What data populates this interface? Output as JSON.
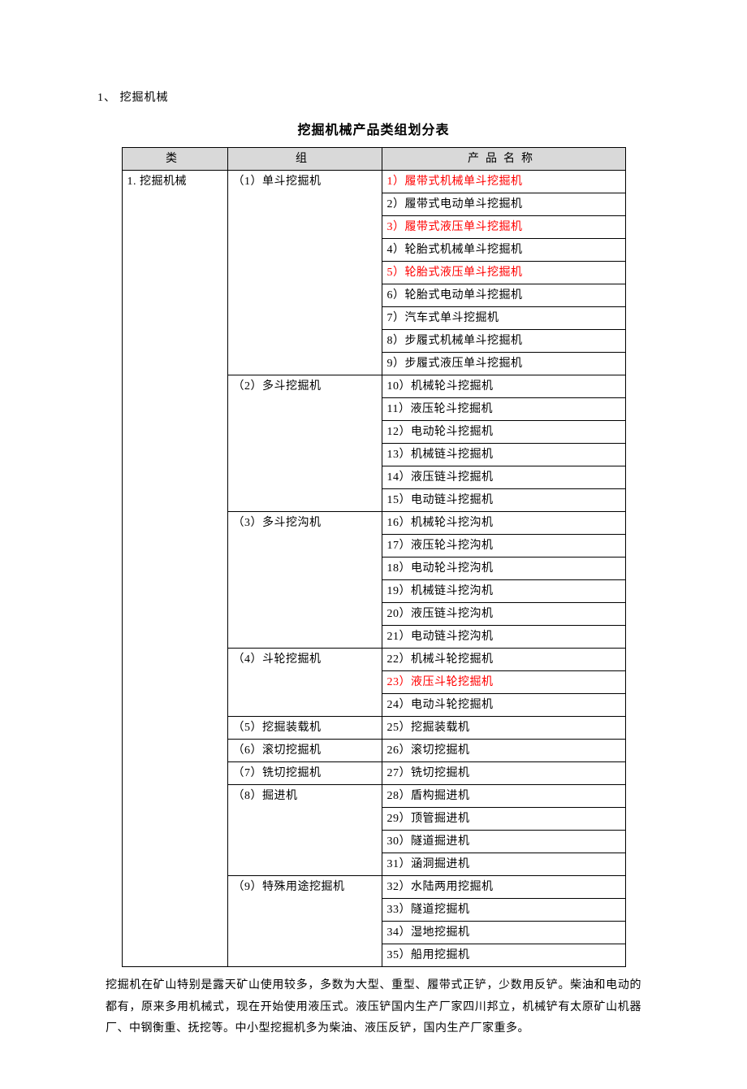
{
  "heading": "1、 挖掘机械",
  "tableTitle": "挖掘机械产品类组划分表",
  "headers": {
    "col1": "类",
    "col2": "组",
    "col3": "产品名称"
  },
  "category": "1. 挖掘机械",
  "groups": [
    {
      "label": "（1）单斗挖掘机",
      "rows": [
        {
          "text": "1）履带式机械单斗挖掘机",
          "highlight": true
        },
        {
          "text": "2）履带式电动单斗挖掘机",
          "highlight": false
        },
        {
          "text": "3）履带式液压单斗挖掘机",
          "highlight": true
        },
        {
          "text": "4）轮胎式机械单斗挖掘机",
          "highlight": false
        },
        {
          "text": "5）轮胎式液压单斗挖掘机",
          "highlight": true
        },
        {
          "text": "6）轮胎式电动单斗挖掘机",
          "highlight": false
        },
        {
          "text": "7）汽车式单斗挖掘机",
          "highlight": false
        },
        {
          "text": "8）步履式机械单斗挖掘机",
          "highlight": false
        },
        {
          "text": "9）步履式液压单斗挖掘机",
          "highlight": false
        }
      ]
    },
    {
      "label": "（2）多斗挖掘机",
      "rows": [
        {
          "text": "10）机械轮斗挖掘机",
          "highlight": false
        },
        {
          "text": "11）液压轮斗挖掘机",
          "highlight": false
        },
        {
          "text": "12）电动轮斗挖掘机",
          "highlight": false
        },
        {
          "text": "13）机械链斗挖掘机",
          "highlight": false
        },
        {
          "text": "14）液压链斗挖掘机",
          "highlight": false
        },
        {
          "text": "15）电动链斗挖掘机",
          "highlight": false
        }
      ]
    },
    {
      "label": "（3）多斗挖沟机",
      "rows": [
        {
          "text": "16）机械轮斗挖沟机",
          "highlight": false
        },
        {
          "text": "17）液压轮斗挖沟机",
          "highlight": false
        },
        {
          "text": "18）电动轮斗挖沟机",
          "highlight": false
        },
        {
          "text": "19）机械链斗挖沟机",
          "highlight": false
        },
        {
          "text": "20）液压链斗挖沟机",
          "highlight": false
        },
        {
          "text": "21）电动链斗挖沟机",
          "highlight": false
        }
      ]
    },
    {
      "label": "（4）斗轮挖掘机",
      "rows": [
        {
          "text": "22）机械斗轮挖掘机",
          "highlight": false
        },
        {
          "text": "23）液压斗轮挖掘机",
          "highlight": true
        },
        {
          "text": "24）电动斗轮挖掘机",
          "highlight": false
        }
      ]
    },
    {
      "label": "（5）挖掘装载机",
      "rows": [
        {
          "text": "25）挖掘装载机",
          "highlight": false
        }
      ]
    },
    {
      "label": "（6）滚切挖掘机",
      "rows": [
        {
          "text": "26）滚切挖掘机",
          "highlight": false
        }
      ]
    },
    {
      "label": "（7）铣切挖掘机",
      "rows": [
        {
          "text": "27）铣切挖掘机",
          "highlight": false
        }
      ]
    },
    {
      "label": "（8）掘进机",
      "rows": [
        {
          "text": "28）盾构掘进机",
          "highlight": false
        },
        {
          "text": "29）顶管掘进机",
          "highlight": false
        },
        {
          "text": "30）隧道掘进机",
          "highlight": false
        },
        {
          "text": "31）涵洞掘进机",
          "highlight": false
        }
      ]
    },
    {
      "label": "（9）特殊用途挖掘机",
      "rows": [
        {
          "text": "32）水陆两用挖掘机",
          "highlight": false
        },
        {
          "text": "33）隧道挖掘机",
          "highlight": false
        },
        {
          "text": "34）湿地挖掘机",
          "highlight": false
        },
        {
          "text": "35）船用挖掘机",
          "highlight": false
        }
      ]
    }
  ],
  "footnote": "挖掘机在矿山特别是露天矿山使用较多，多数为大型、重型、履带式正铲，少数用反铲。柴油和电动的都有，原来多用机械式，现在开始使用液压式。液压铲国内生产厂家四川邦立，机械铲有太原矿山机器厂、中钢衡重、抚挖等。中小型挖掘机多为柴油、液压反铲，国内生产厂家重多。",
  "colors": {
    "highlight": "#ff0000",
    "headerBg": "#d9d9d9",
    "border": "#000000",
    "text": "#000000",
    "background": "#ffffff"
  }
}
